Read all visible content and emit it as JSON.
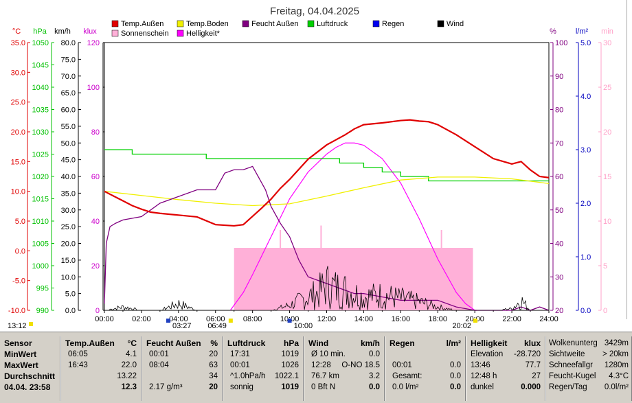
{
  "title": "Freitag, 04.04.2025",
  "axis_units": {
    "c": "°C",
    "hpa": "hPa",
    "kmh": "km/h",
    "klux": "klux",
    "pct": "%",
    "lm2": "l/m²",
    "min": "min"
  },
  "axis_ticks": {
    "c": [
      "35.0",
      "30.0",
      "25.0",
      "20.0",
      "15.0",
      "10.0",
      "5.0",
      "0.0",
      "-5.0",
      "-10.0"
    ],
    "hpa": [
      "1050",
      "1045",
      "1040",
      "1035",
      "1030",
      "1025",
      "1020",
      "1015",
      "1010",
      "1005",
      "1000",
      "995",
      "990"
    ],
    "kmh": [
      "80.0",
      "75.0",
      "70.0",
      "65.0",
      "60.0",
      "55.0",
      "50.0",
      "45.0",
      "40.0",
      "35.0",
      "30.0",
      "25.0",
      "20.0",
      "15.0",
      "10.0",
      "5.0",
      "0.0"
    ],
    "klux": [
      "120",
      "100",
      "80",
      "60",
      "40",
      "20",
      "0"
    ],
    "pct": [
      "100",
      "90",
      "80",
      "70",
      "60",
      "50",
      "40",
      "30",
      "20"
    ],
    "lm2": [
      "5.0",
      "4.0",
      "3.0",
      "2.0",
      "1.0",
      "0.0"
    ],
    "min": [
      "30",
      "25",
      "20",
      "15",
      "10",
      "5",
      "0"
    ],
    "x": [
      "00:00",
      "02:00",
      "04:00",
      "06:00",
      "08:00",
      "10:00",
      "12:00",
      "14:00",
      "16:00",
      "18:00",
      "20:00",
      "22:00",
      "24:00"
    ]
  },
  "legend": [
    {
      "label": "Temp.Außen",
      "color": "#e00000"
    },
    {
      "label": "Temp.Boden",
      "color": "#f0f000"
    },
    {
      "label": "Feucht Außen",
      "color": "#800080"
    },
    {
      "label": "Luftdruck",
      "color": "#00d000"
    },
    {
      "label": "Regen",
      "color": "#0000f0"
    },
    {
      "label": "Wind",
      "color": "#000000"
    },
    {
      "label": "Sonnenschein",
      "color": "#ffb0d8"
    },
    {
      "label": "Helligkeit*",
      "color": "#ff00ff"
    }
  ],
  "markers": {
    "moonrise": "03:27",
    "sunrise": "06:49",
    "moonset": "10:00",
    "sunset": "20:02",
    "left": "13:12"
  },
  "chart_data": {
    "type": "line",
    "title": "Freitag, 04.04.2025",
    "x_unit": "hour of day",
    "x_range": [
      0,
      24
    ],
    "series": [
      {
        "name": "Temp.Außen",
        "unit": "°C",
        "color": "#e00000",
        "x": [
          0,
          0.5,
          1,
          1.5,
          2,
          2.5,
          3,
          4,
          5,
          6,
          6.5,
          7,
          7.5,
          8,
          8.5,
          9,
          9.5,
          10,
          11,
          12,
          13,
          13.5,
          14,
          15,
          16,
          16.5,
          17,
          17.5,
          18,
          19,
          20,
          21,
          22,
          22.5,
          23,
          23.5,
          24
        ],
        "y": [
          10.0,
          9.2,
          8.4,
          7.6,
          7.0,
          6.5,
          6.3,
          6.0,
          5.7,
          4.4,
          4.3,
          4.2,
          4.4,
          5.8,
          7.2,
          8.7,
          10.5,
          12.0,
          15.4,
          17.8,
          19.5,
          20.5,
          21.2,
          21.5,
          21.9,
          22.0,
          21.8,
          21.7,
          21.2,
          19.5,
          17.5,
          15.5,
          14.6,
          15.0,
          13.6,
          12.5,
          12.3
        ]
      },
      {
        "name": "Temp.Boden",
        "unit": "°C",
        "color": "#f0f000",
        "x": [
          0,
          2,
          4,
          6,
          8,
          10,
          12,
          14,
          16,
          18,
          20,
          22,
          24
        ],
        "y": [
          10.0,
          9.3,
          8.6,
          8.0,
          7.6,
          7.9,
          9.2,
          10.6,
          11.9,
          12.4,
          12.4,
          12.1,
          11.3
        ]
      },
      {
        "name": "Feucht Außen",
        "unit": "%",
        "color": "#800080",
        "x": [
          0,
          0.1,
          0.3,
          0.6,
          1,
          2,
          3,
          4,
          5,
          6,
          6.5,
          7,
          7.5,
          8,
          8.3,
          8.7,
          9,
          9.5,
          10,
          10.5,
          11,
          12,
          13,
          13.5,
          14,
          15,
          16,
          17,
          18,
          19,
          20,
          21,
          22,
          22.5,
          23,
          23.5,
          24
        ],
        "y": [
          22,
          40,
          45,
          46,
          47,
          48,
          52,
          54,
          56,
          56,
          61,
          62,
          62,
          63,
          60,
          56,
          51,
          46,
          42,
          35,
          30,
          28,
          26,
          25,
          25,
          24,
          23,
          23,
          23,
          21,
          20,
          20,
          20,
          21,
          20,
          21,
          20
        ]
      },
      {
        "name": "Luftdruck",
        "unit": "hPa",
        "color": "#00d000",
        "x": [
          0,
          1,
          1.5,
          2,
          3,
          4,
          5,
          5.5,
          6,
          8,
          10,
          12,
          12.7,
          13,
          14,
          15,
          16,
          17,
          17.5,
          18,
          19,
          20,
          22,
          24
        ],
        "y": [
          1026,
          1026,
          1025,
          1025,
          1025,
          1025,
          1025,
          1024,
          1024,
          1024,
          1024,
          1024,
          1023,
          1023,
          1022,
          1021,
          1020,
          1020,
          1019,
          1019,
          1019,
          1019,
          1019,
          1019
        ]
      },
      {
        "name": "Helligkeit*",
        "unit": "klux",
        "color": "#ff00ff",
        "x": [
          6.8,
          7.5,
          8,
          9,
          10,
          11,
          12,
          12.5,
          13,
          13.5,
          14,
          15,
          16,
          17,
          18,
          19,
          19.5,
          20,
          20.1
        ],
        "y": [
          0,
          8,
          16,
          33,
          50,
          62,
          70,
          73,
          75,
          75,
          74,
          68,
          57,
          41,
          23,
          8,
          3,
          0,
          0
        ]
      },
      {
        "name": "Sonnenschein",
        "unit": "min",
        "color": "#ffb0d8",
        "x": [
          7.0,
          19.9
        ],
        "y": [
          7,
          7
        ]
      },
      {
        "name": "Wind",
        "unit": "km/h",
        "color": "#000000",
        "x": [
          0,
          1,
          2,
          3,
          4,
          5,
          6,
          7,
          8,
          9,
          10,
          11,
          11.5,
          12,
          12.5,
          13,
          13.5,
          14,
          15,
          16,
          17,
          18,
          19,
          20,
          21,
          22,
          22.5,
          23,
          24
        ],
        "y": [
          0,
          2,
          0,
          0,
          4,
          0,
          0,
          0,
          0,
          0,
          3,
          8,
          10,
          15,
          13,
          12,
          10,
          8,
          9,
          7,
          5,
          2,
          0,
          0,
          0,
          1,
          6,
          0,
          0
        ]
      },
      {
        "name": "Regen",
        "unit": "l/m²",
        "color": "#0000f0",
        "x": [
          0,
          24
        ],
        "y": [
          0,
          0
        ]
      }
    ]
  },
  "stats": {
    "c1": {
      "rows": [
        "Sensor",
        "MinWert",
        "MaxWert",
        "Durchschnitt",
        "04.04. 23:58"
      ]
    },
    "c2": {
      "title": "Temp.Außen",
      "unit": "°C",
      "rows": [
        [
          "06:05",
          "4.1"
        ],
        [
          "16:43",
          "22.0"
        ],
        [
          "",
          "13.22"
        ],
        [
          "",
          "12.3"
        ]
      ]
    },
    "c3": {
      "title": "Feucht Außen",
      "unit": "%",
      "rows": [
        [
          "00:01",
          "20"
        ],
        [
          "08:04",
          "63"
        ],
        [
          "",
          "34"
        ],
        [
          "2.17 g/m³",
          "20"
        ]
      ]
    },
    "c4": {
      "title": "Luftdruck",
      "unit": "hPa",
      "rows": [
        [
          "17:31",
          "1019"
        ],
        [
          "00:01",
          "1026"
        ],
        [
          "^1.0hPa/h",
          "1022.1"
        ],
        [
          "sonnig",
          "1019"
        ]
      ]
    },
    "c5": {
      "title": "Wind",
      "unit": "km/h",
      "rows": [
        [
          "Ø 10 min.",
          "0.0"
        ],
        [
          "12:28",
          "O-NO 18.5"
        ],
        [
          "76.7 km",
          "3.2"
        ],
        [
          "0 Bft N",
          "0.0"
        ]
      ]
    },
    "c6": {
      "title": "Regen",
      "unit": "l/m²",
      "rows": [
        [
          "",
          ""
        ],
        [
          "00:01",
          "0.0"
        ],
        [
          "Gesamt:",
          "0.0"
        ],
        [
          "0.0 l/m²",
          "0.0"
        ]
      ]
    },
    "c7": {
      "title": "Helligkeit",
      "unit": "klux",
      "rows": [
        [
          "Elevation",
          "-28.720"
        ],
        [
          "13:46",
          "77.7"
        ],
        [
          "12:48 h",
          "27"
        ],
        [
          "dunkel",
          "0.000"
        ]
      ]
    },
    "c8": {
      "rows": [
        [
          "Wolkenunterg",
          "3429m"
        ],
        [
          "Sichtweite",
          "> 20km"
        ],
        [
          "Schneefallgr",
          "1280m"
        ],
        [
          "Feucht-Kugel",
          "4.3°C"
        ],
        [
          "Regen/Tag",
          "0.0l/m²"
        ]
      ]
    }
  }
}
